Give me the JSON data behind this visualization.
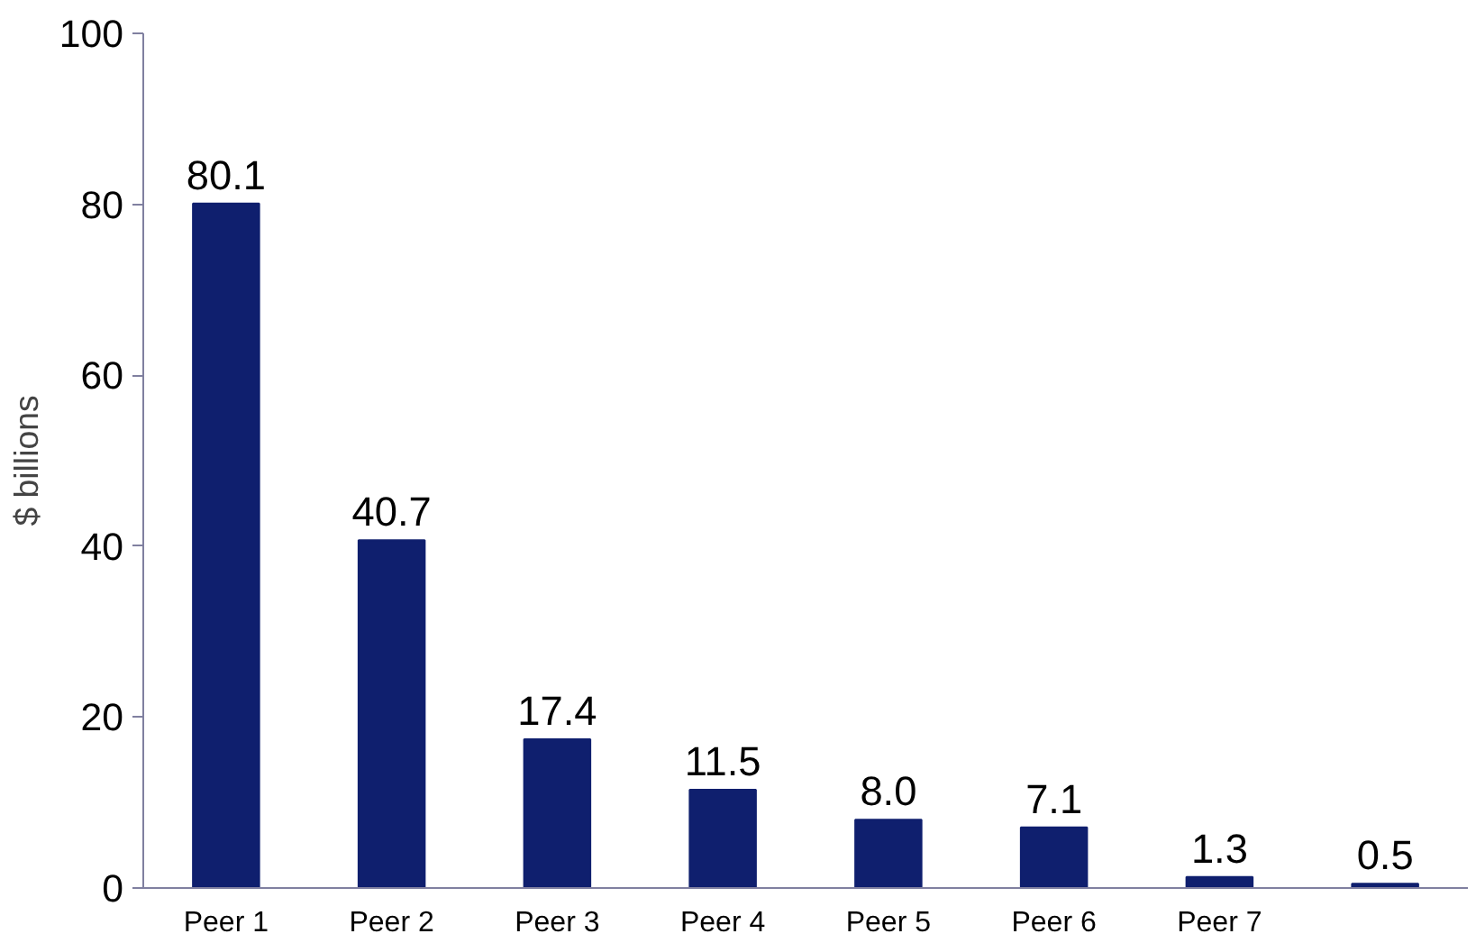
{
  "chart_data": {
    "type": "bar",
    "ylabel": "$ billions",
    "categories": [
      "Peer 1",
      "Peer 2",
      "Peer 3",
      "Peer 4",
      "Peer 5",
      "Peer 6",
      "Peer 7",
      null
    ],
    "values": [
      80.1,
      40.7,
      17.4,
      11.5,
      8.0,
      7.1,
      1.3,
      0.5
    ],
    "value_labels": [
      "80.1",
      "40.7",
      "17.4",
      "11.5",
      "8.0",
      "7.1",
      "1.3",
      "0.5"
    ],
    "color": "#0f1f6e",
    "ylim": [
      0,
      100
    ],
    "yticks": [
      0,
      20,
      40,
      60,
      80,
      100
    ],
    "grid": false
  }
}
